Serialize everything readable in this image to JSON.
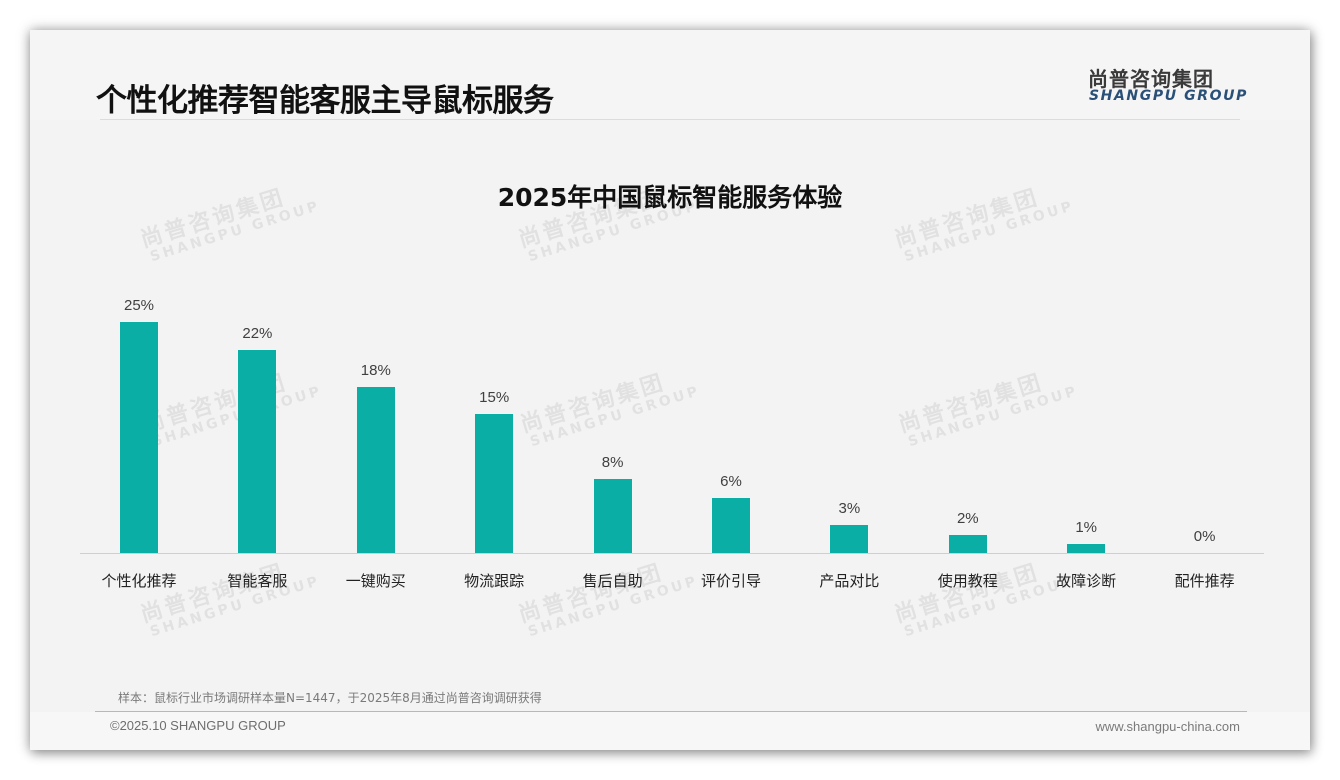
{
  "header": {
    "title": "个性化推荐智能客服主导鼠标服务",
    "logo_cn": "尚普咨询集团",
    "logo_en": "SHANGPU GROUP"
  },
  "watermark": {
    "cn": "尚普咨询集团",
    "en": "SHANGPU GROUP"
  },
  "colors": {
    "bar": "#0aaea5",
    "background": "#f3f3f3",
    "logo_en": "#2a5078"
  },
  "chart_data": {
    "type": "bar",
    "title": "2025年中国鼠标智能服务体验",
    "xlabel": "",
    "ylabel": "",
    "ylim": [
      0,
      25
    ],
    "grid": false,
    "legend": null,
    "categories": [
      "个性化推荐",
      "智能客服",
      "一键购买",
      "物流跟踪",
      "售后自助",
      "评价引导",
      "产品对比",
      "使用教程",
      "故障诊断",
      "配件推荐"
    ],
    "values": [
      25,
      22,
      18,
      15,
      8,
      6,
      3,
      2,
      1,
      0
    ],
    "value_labels": [
      "25%",
      "22%",
      "18%",
      "15%",
      "8%",
      "6%",
      "3%",
      "2%",
      "1%",
      "0%"
    ],
    "unit": "%"
  },
  "footer": {
    "note": "样本：鼠标行业市场调研样本量N=1447，于2025年8月通过尚普咨询调研获得",
    "copyright": "©2025.10 SHANGPU GROUP",
    "website": "www.shangpu-china.com"
  }
}
